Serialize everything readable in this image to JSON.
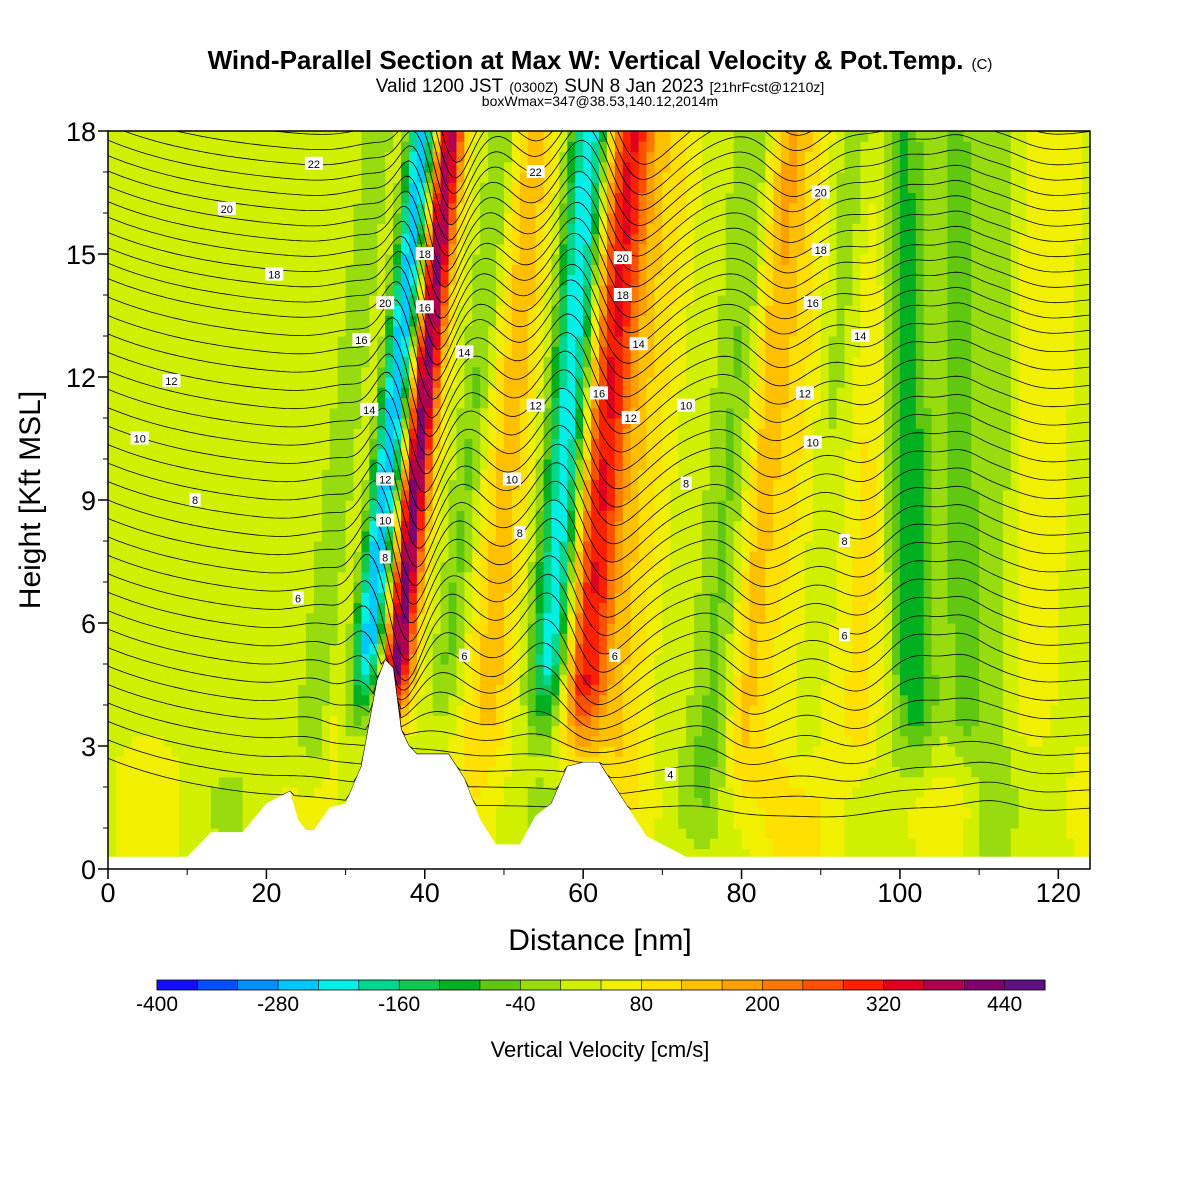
{
  "title": {
    "main": "Wind-Parallel Section at Max W: Vertical Velocity & Pot.Temp.",
    "main_suffix": "(C)",
    "valid_prefix": "Valid 1200 JST",
    "valid_utc": "(0300Z)",
    "valid_date": "SUN 8 Jan 2023",
    "forecast_info": "[21hrFcst@1210z]",
    "box_info": "boxWmax=347@38.53,140.12,2014m"
  },
  "chart_data": {
    "type": "heatmap",
    "xlabel": "Distance [nm]",
    "ylabel": "Height [Kft MSL]",
    "xlim": [
      0,
      124
    ],
    "ylim": [
      0,
      18
    ],
    "x_ticks": [
      "0",
      "20",
      "40",
      "60",
      "80",
      "100",
      "120"
    ],
    "y_ticks": [
      "0",
      "3",
      "6",
      "9",
      "12",
      "15",
      "18"
    ],
    "colorbar": {
      "label": "Vertical Velocity [cm/s]",
      "min": -400,
      "max": 480,
      "step": 40,
      "tick_labels": [
        "-400",
        "-280",
        "-160",
        "-40",
        "80",
        "200",
        "320",
        "440"
      ],
      "colors": [
        "#1010ff",
        "#0050ff",
        "#0090ff",
        "#00c8ff",
        "#00f0e8",
        "#00d890",
        "#10c850",
        "#00b020",
        "#60c810",
        "#98dc10",
        "#d0f000",
        "#f0f000",
        "#ffe000",
        "#ffc000",
        "#ffa000",
        "#ff7800",
        "#ff5000",
        "#ff2000",
        "#e00020",
        "#b00050",
        "#800070",
        "#601080"
      ]
    },
    "terrain": [
      [
        0,
        0.3
      ],
      [
        10,
        0.3
      ],
      [
        13,
        0.9
      ],
      [
        17,
        0.9
      ],
      [
        20,
        1.6
      ],
      [
        23,
        1.9
      ],
      [
        24,
        1.2
      ],
      [
        25,
        0.95
      ],
      [
        26,
        0.95
      ],
      [
        28,
        1.5
      ],
      [
        30,
        1.6
      ],
      [
        32,
        2.5
      ],
      [
        34,
        4.6
      ],
      [
        35,
        5.1
      ],
      [
        36,
        4.9
      ],
      [
        37,
        3.4
      ],
      [
        38,
        3.0
      ],
      [
        39,
        2.8
      ],
      [
        40,
        2.8
      ],
      [
        43,
        2.8
      ],
      [
        45,
        2.2
      ],
      [
        47,
        1.2
      ],
      [
        49,
        0.6
      ],
      [
        52,
        0.6
      ],
      [
        54,
        1.3
      ],
      [
        56,
        1.6
      ],
      [
        58,
        2.5
      ],
      [
        60,
        2.6
      ],
      [
        62,
        2.6
      ],
      [
        64,
        2.0
      ],
      [
        66,
        1.4
      ],
      [
        68,
        0.8
      ],
      [
        70,
        0.6
      ],
      [
        73,
        0.3
      ],
      [
        124,
        0.3
      ]
    ],
    "updrafts": [
      {
        "axis": [
          [
            36.5,
            5.0
          ],
          [
            43,
            18
          ]
        ],
        "w": 2.0,
        "amp": 400
      },
      {
        "axis": [
          [
            33,
            5.5
          ],
          [
            40,
            18
          ]
        ],
        "w": 2.1,
        "amp": -320
      },
      {
        "axis": [
          [
            60,
            4.5
          ],
          [
            66,
            18
          ]
        ],
        "w": 3.2,
        "amp": 290
      },
      {
        "axis": [
          [
            56,
            5.0
          ],
          [
            61,
            18
          ]
        ],
        "w": 2.6,
        "amp": -290
      },
      {
        "axis": [
          [
            48,
            4.0
          ],
          [
            54,
            18
          ]
        ],
        "w": 3.0,
        "amp": 110
      },
      {
        "axis": [
          [
            26,
            3.0
          ],
          [
            35,
            18
          ]
        ],
        "w": 3.0,
        "amp": -60
      },
      {
        "axis": [
          [
            29,
            4.0
          ],
          [
            37,
            18
          ]
        ],
        "w": 1.5,
        "amp": 60
      },
      {
        "axis": [
          [
            43,
            5.0
          ],
          [
            50,
            18
          ]
        ],
        "w": 2.0,
        "amp": -80
      },
      {
        "axis": [
          [
            60,
            1.0
          ],
          [
            68,
            18
          ]
        ],
        "w": 2.5,
        "amp": 20
      },
      {
        "axis": [
          [
            65,
            3.0
          ],
          [
            72,
            18
          ]
        ],
        "w": 2.5,
        "amp": 70
      },
      {
        "axis": [
          [
            76,
            3.0
          ],
          [
            82,
            18
          ]
        ],
        "w": 3.0,
        "amp": -80
      },
      {
        "axis": [
          [
            80,
            3.0
          ],
          [
            86,
            18
          ]
        ],
        "w": 2.5,
        "amp": 100
      },
      {
        "axis": [
          [
            88,
            3.0
          ],
          [
            94,
            18
          ]
        ],
        "w": 2.5,
        "amp": -70
      },
      {
        "axis": [
          [
            102,
            4.0
          ],
          [
            100,
            18
          ]
        ],
        "w": 3.0,
        "amp": -140
      },
      {
        "axis": [
          [
            95,
            3.0
          ],
          [
            98,
            18
          ]
        ],
        "w": 2.5,
        "amp": 60
      },
      {
        "axis": [
          [
            108,
            4.0
          ],
          [
            107,
            18
          ]
        ],
        "w": 2.0,
        "amp": -90
      },
      {
        "axis": [
          [
            112,
            0.0
          ],
          [
            112,
            18
          ]
        ],
        "w": 3.0,
        "amp": -70
      },
      {
        "axis": [
          [
            88,
            0.0
          ],
          [
            88,
            6.0
          ]
        ],
        "w": 5.0,
        "amp": 60
      },
      {
        "axis": [
          [
            114,
            0.0
          ],
          [
            118,
            16
          ]
        ],
        "w": 4.0,
        "amp": 40
      }
    ],
    "theta_levels": [
      4,
      6,
      8,
      10,
      12,
      14,
      16,
      18,
      20,
      22
    ],
    "contour_labels": [
      {
        "x": 26,
        "y": 17.2,
        "text": "22"
      },
      {
        "x": 54,
        "y": 17.0,
        "text": "22"
      },
      {
        "x": 15,
        "y": 16.1,
        "text": "20"
      },
      {
        "x": 90,
        "y": 16.5,
        "text": "20"
      },
      {
        "x": 21,
        "y": 14.5,
        "text": "18"
      },
      {
        "x": 90,
        "y": 15.1,
        "text": "18"
      },
      {
        "x": 40,
        "y": 15.0,
        "text": "18"
      },
      {
        "x": 65,
        "y": 14.9,
        "text": "20"
      },
      {
        "x": 35,
        "y": 13.8,
        "text": "20"
      },
      {
        "x": 40,
        "y": 13.7,
        "text": "16"
      },
      {
        "x": 65,
        "y": 14.0,
        "text": "18"
      },
      {
        "x": 89,
        "y": 13.8,
        "text": "16"
      },
      {
        "x": 95,
        "y": 13.0,
        "text": "14"
      },
      {
        "x": 32,
        "y": 12.9,
        "text": "16"
      },
      {
        "x": 45,
        "y": 12.6,
        "text": "14"
      },
      {
        "x": 67,
        "y": 12.8,
        "text": "14"
      },
      {
        "x": 8,
        "y": 11.9,
        "text": "12"
      },
      {
        "x": 88,
        "y": 11.6,
        "text": "12"
      },
      {
        "x": 62,
        "y": 11.6,
        "text": "16"
      },
      {
        "x": 54,
        "y": 11.3,
        "text": "12"
      },
      {
        "x": 33,
        "y": 11.2,
        "text": "14"
      },
      {
        "x": 73,
        "y": 11.3,
        "text": "10"
      },
      {
        "x": 66,
        "y": 11.0,
        "text": "12"
      },
      {
        "x": 4,
        "y": 10.5,
        "text": "10"
      },
      {
        "x": 89,
        "y": 10.4,
        "text": "10"
      },
      {
        "x": 51,
        "y": 9.5,
        "text": "10"
      },
      {
        "x": 35,
        "y": 9.5,
        "text": "12"
      },
      {
        "x": 73,
        "y": 9.4,
        "text": "8"
      },
      {
        "x": 11,
        "y": 9.0,
        "text": "8"
      },
      {
        "x": 35,
        "y": 8.5,
        "text": "10"
      },
      {
        "x": 52,
        "y": 8.2,
        "text": "8"
      },
      {
        "x": 93,
        "y": 8.0,
        "text": "8"
      },
      {
        "x": 35,
        "y": 7.6,
        "text": "8"
      },
      {
        "x": 24,
        "y": 6.6,
        "text": "6"
      },
      {
        "x": 93,
        "y": 5.7,
        "text": "6"
      },
      {
        "x": 45,
        "y": 5.2,
        "text": "6"
      },
      {
        "x": 64,
        "y": 5.2,
        "text": "6"
      },
      {
        "x": 71,
        "y": 2.3,
        "text": "4"
      }
    ]
  }
}
